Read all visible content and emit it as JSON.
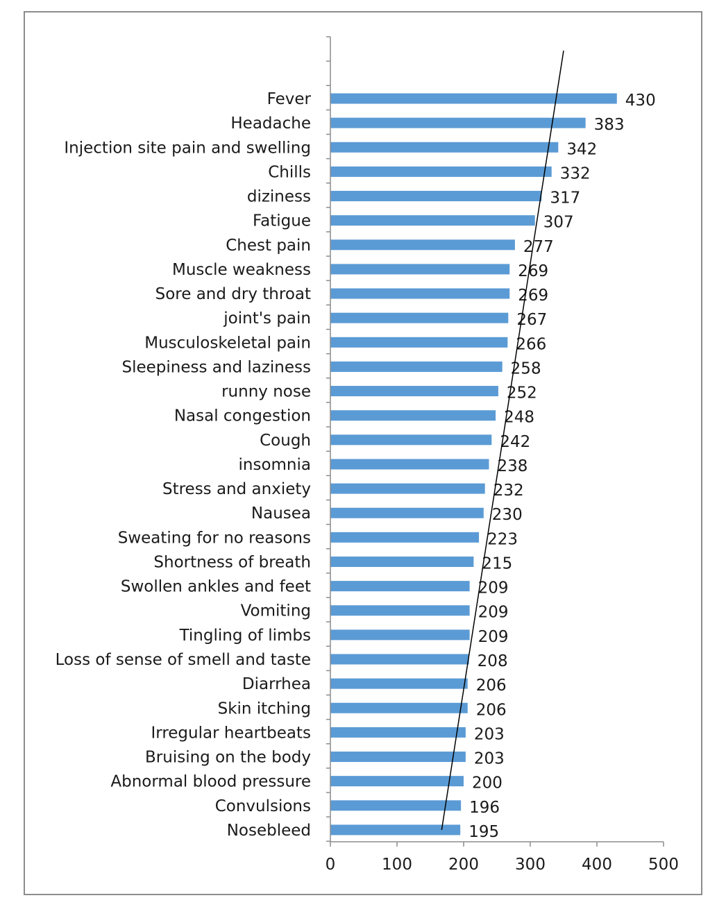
{
  "chart_data": {
    "type": "bar",
    "orientation": "horizontal",
    "title": "",
    "xlabel": "",
    "ylabel": "",
    "xlim": [
      0,
      500
    ],
    "xticks": [
      0,
      100,
      200,
      300,
      400,
      500
    ],
    "grid": false,
    "legend": "none",
    "bar_color": "#5b9bd5",
    "trendline": {
      "color": "#000000",
      "from": 167,
      "to": 350
    },
    "categories": [
      "Fever",
      "Headache",
      "Injection site pain and swelling",
      "Chills",
      "diziness",
      "Fatigue",
      "Chest pain",
      "Muscle weakness",
      "Sore and dry throat",
      "joint's pain",
      "Musculoskeletal pain",
      "Sleepiness and laziness",
      "runny nose",
      "Nasal congestion",
      "Cough",
      "insomnia",
      "Stress and anxiety",
      "Nausea",
      "Sweating for no reasons",
      "Shortness of breath",
      "Swollen ankles and feet",
      "Vomiting",
      "Tingling of limbs",
      "Loss of sense of smell and taste",
      "Diarrhea",
      "Skin itching",
      "Irregular heartbeats",
      "Bruising on the body",
      "Abnormal blood pressure",
      "Convulsions",
      "Nosebleed"
    ],
    "values": [
      430,
      383,
      342,
      332,
      317,
      307,
      277,
      269,
      269,
      267,
      266,
      258,
      252,
      248,
      242,
      238,
      232,
      230,
      223,
      215,
      209,
      209,
      209,
      208,
      206,
      206,
      203,
      203,
      200,
      196,
      195
    ]
  }
}
